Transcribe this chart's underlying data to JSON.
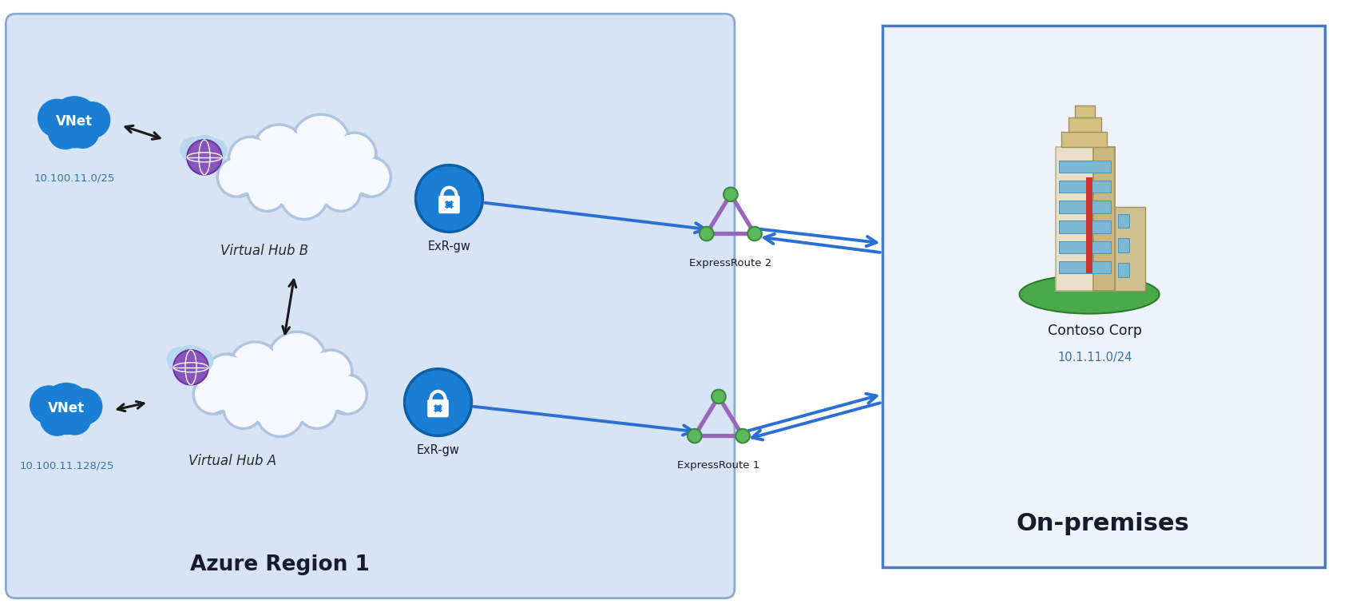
{
  "bg_color": "#dce9f5",
  "white": "#ffffff",
  "azure_bg": "#d6e4f5",
  "azure_edge": "#8aabcf",
  "onprem_bg": "#eef2fa",
  "onprem_edge": "#4a7bbf",
  "cloud_fill": "#f5f8ff",
  "cloud_edge": "#b0c4de",
  "blue_vnet": "#1a7fd4",
  "blue_arrow": "#2a6fd4",
  "purple_er": "#9966bb",
  "green_dot": "#5cb85c",
  "green_dot_edge": "#3a8a3a",
  "black": "#1a1a1a",
  "title_azure": "Azure Region 1",
  "title_onprem": "On-premises",
  "label_hub_b": "Virtual Hub B",
  "label_hub_a": "Virtual Hub A",
  "label_exr_gw": "ExR-gw",
  "label_er1": "ExpressRoute 1",
  "label_er2": "ExpressRoute 2",
  "label_vnet1_ip": "10.100.11.0/25",
  "label_vnet2_ip": "10.100.11.128/25",
  "label_contoso": "Contoso Corp",
  "label_contoso_ip": "10.1.11.0/24",
  "figsize": [
    16.93,
    7.66
  ],
  "dpi": 100
}
